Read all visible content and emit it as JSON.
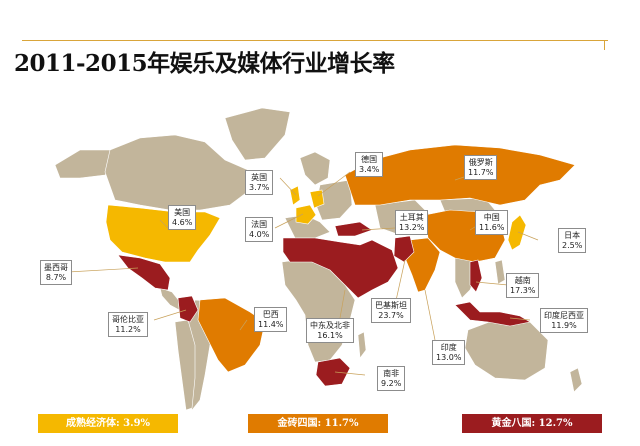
{
  "title": "2011-2015年娱乐及媒体行业增长率",
  "colors": {
    "mature": "#f5b800",
    "bric": "#e07b00",
    "golden": "#9b1c1f",
    "other": "#c2b59b",
    "ocean": "#ffffff"
  },
  "countries": [
    {
      "name": "美国",
      "value": "4.6%",
      "group": "mature"
    },
    {
      "name": "英国",
      "value": "3.7%",
      "group": "mature"
    },
    {
      "name": "法国",
      "value": "4.0%",
      "group": "mature"
    },
    {
      "name": "德国",
      "value": "3.4%",
      "group": "mature"
    },
    {
      "name": "日本",
      "value": "2.5%",
      "group": "mature"
    },
    {
      "name": "俄罗斯",
      "value": "11.7%",
      "group": "bric"
    },
    {
      "name": "中国",
      "value": "11.6%",
      "group": "bric"
    },
    {
      "name": "巴西",
      "value": "11.4%",
      "group": "bric"
    },
    {
      "name": "印度",
      "value": "13.0%",
      "group": "bric"
    },
    {
      "name": "墨西哥",
      "value": "8.7%",
      "group": "golden"
    },
    {
      "name": "哥伦比亚",
      "value": "11.2%",
      "group": "golden"
    },
    {
      "name": "土耳其",
      "value": "13.2%",
      "group": "golden"
    },
    {
      "name": "中东及北非",
      "value": "16.1%",
      "group": "golden"
    },
    {
      "name": "巴基斯坦",
      "value": "23.7%",
      "group": "golden"
    },
    {
      "name": "南非",
      "value": "9.2%",
      "group": "golden"
    },
    {
      "name": "越南",
      "value": "17.3%",
      "group": "golden"
    },
    {
      "name": "印度尼西亚",
      "value": "11.9%",
      "group": "golden"
    }
  ],
  "legend": [
    {
      "label": "成熟经济体: 3.9%",
      "group": "mature"
    },
    {
      "label": "金砖四国: 11.7%",
      "group": "bric"
    },
    {
      "label": "黄金八国: 12.7%",
      "group": "golden"
    }
  ]
}
